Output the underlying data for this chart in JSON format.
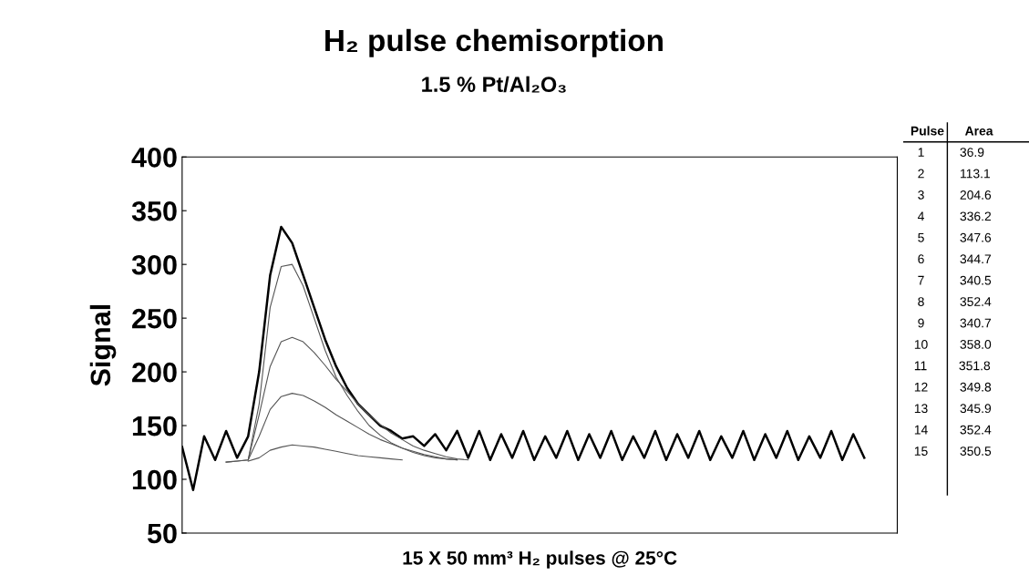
{
  "chart_data": [
    {
      "type": "line",
      "title": "H₂ pulse chemisorption",
      "subtitle": "1.5 % Pt/Al₂O₃",
      "xlabel": "15 X 50 mm³ H₂ pulses @ 25°C",
      "ylabel": "Signal",
      "categories": [
        null,
        null,
        null,
        null,
        null,
        null,
        null,
        null,
        null,
        null,
        null,
        null,
        null,
        null,
        null,
        null,
        null,
        null,
        null,
        null,
        null,
        null,
        null,
        null,
        null,
        null,
        null,
        null,
        null,
        null,
        null,
        null,
        null,
        null,
        null,
        null,
        null,
        null,
        null,
        null,
        null,
        null,
        null,
        null,
        null,
        null,
        null,
        null,
        null,
        null,
        null,
        null,
        null,
        null,
        null,
        null,
        null,
        null,
        null,
        null,
        null,
        null,
        null,
        null,
        null,
        null
      ],
      "ylim": [
        50,
        400
      ],
      "yticks": [
        50,
        100,
        150,
        200,
        250,
        300,
        350,
        400
      ],
      "grid": false,
      "tick_labels": "y",
      "marker": "none",
      "line_style": "solid",
      "series": [
        {
          "color": "#000000",
          "values": [
            130,
            90,
            140,
            118,
            145,
            120,
            140,
            200,
            290,
            335,
            320,
            290,
            260,
            230,
            205,
            185,
            170,
            160,
            150,
            145,
            138,
            140,
            131,
            142,
            127,
            145,
            120,
            145,
            118,
            142,
            120,
            145,
            118,
            140,
            120,
            145,
            118,
            142,
            120,
            145,
            118,
            140,
            120,
            145,
            118,
            142,
            120,
            145,
            118,
            140,
            120,
            145,
            118,
            142,
            120,
            145,
            118,
            140,
            120,
            145,
            118,
            142,
            120,
            null,
            null,
            null
          ]
        },
        {
          "color": "#555555",
          "values": [
            null,
            null,
            null,
            null,
            116,
            117,
            118,
            170,
            260,
            298,
            300,
            280,
            250,
            220,
            195,
            178,
            163,
            150,
            141,
            134,
            129,
            125,
            122,
            120,
            119,
            118,
            null,
            null,
            null,
            null,
            null,
            null,
            null,
            null,
            null,
            null,
            null,
            null,
            null,
            null,
            null,
            null,
            null,
            null,
            null,
            null,
            null,
            null,
            null,
            null,
            null,
            null,
            null,
            null,
            null,
            null,
            null,
            null,
            null,
            null,
            null,
            null,
            null,
            null,
            null,
            null
          ]
        },
        {
          "color": "#555555",
          "values": [
            null,
            null,
            null,
            null,
            116,
            117,
            118,
            160,
            205,
            228,
            232,
            228,
            218,
            206,
            193,
            182,
            170,
            160,
            151,
            143,
            137,
            131,
            127,
            124,
            121,
            119,
            118,
            null,
            null,
            null,
            null,
            null,
            null,
            null,
            null,
            null,
            null,
            null,
            null,
            null,
            null,
            null,
            null,
            null,
            null,
            null,
            null,
            null,
            null,
            null,
            null,
            null,
            null,
            null,
            null,
            null,
            null,
            null,
            null,
            null,
            null,
            null,
            null,
            null,
            null,
            null
          ]
        },
        {
          "color": "#555555",
          "values": [
            null,
            null,
            null,
            null,
            null,
            null,
            118,
            140,
            165,
            177,
            180,
            178,
            173,
            167,
            160,
            154,
            148,
            142,
            137,
            133,
            129,
            126,
            123,
            121,
            119,
            118,
            null,
            null,
            null,
            null,
            null,
            null,
            null,
            null,
            null,
            null,
            null,
            null,
            null,
            null,
            null,
            null,
            null,
            null,
            null,
            null,
            null,
            null,
            null,
            null,
            null,
            null,
            null,
            null,
            null,
            null,
            null,
            null,
            null,
            null,
            null,
            null,
            null,
            null,
            null,
            null
          ]
        },
        {
          "color": "#555555",
          "values": [
            null,
            null,
            null,
            null,
            null,
            null,
            117,
            120,
            127,
            130,
            132,
            131,
            130,
            128,
            126,
            124,
            122,
            121,
            120,
            119,
            118,
            null,
            null,
            null,
            null,
            null,
            null,
            null,
            null,
            null,
            null,
            null,
            null,
            null,
            null,
            null,
            null,
            null,
            null,
            null,
            null,
            null,
            null,
            null,
            null,
            null,
            null,
            null,
            null,
            null,
            null,
            null,
            null,
            null,
            null,
            null,
            null,
            null,
            null,
            null,
            null,
            null,
            null,
            null,
            null,
            null
          ]
        }
      ]
    },
    {
      "type": "other",
      "annotations": [
        "Pulse      Area",
        "  1          36.9",
        "  2          113.1",
        "  3          204.6",
        "  4          336.2",
        "  5          347.6",
        "  6          344.7",
        "  7          340.5",
        "  8          352.4",
        "  9          340.7",
        " 10         358.0",
        " 11         351.8",
        " 12         349.8",
        " 13         345.9",
        " 14         352.4",
        " 15         350.5"
      ]
    }
  ]
}
